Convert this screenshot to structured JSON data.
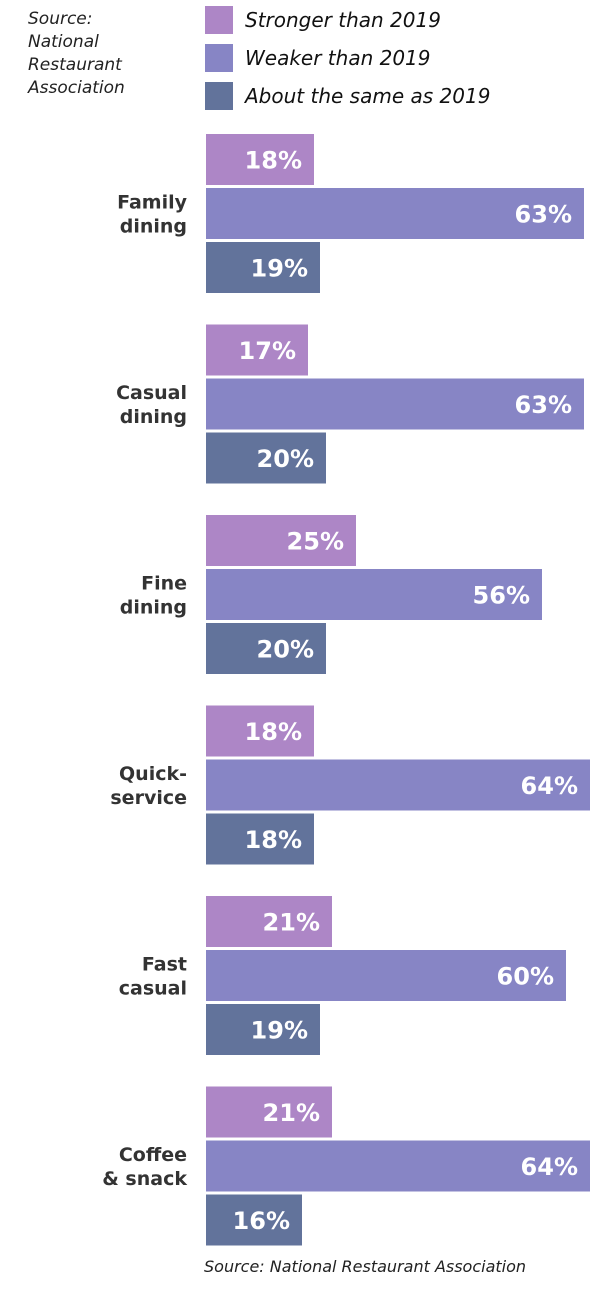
{
  "source_top": "Source: National Restaurant Association",
  "source_bottom": "Source: National  Restaurant Association",
  "colors": {
    "stronger": "#AD86C6",
    "weaker": "#8785C5",
    "same": "#62739B",
    "label": "#333333",
    "value_text": "#ffffff"
  },
  "chart_data": {
    "type": "bar",
    "orientation": "horizontal",
    "value_suffix": "%",
    "legend_position": "top",
    "categories": [
      "Family dining",
      "Casual dining",
      "Fine dining",
      "Quick-service",
      "Fast casual",
      "Coffee & snack"
    ],
    "category_lines": [
      [
        "Family",
        "dining"
      ],
      [
        "Casual",
        "dining"
      ],
      [
        "Fine",
        "dining"
      ],
      [
        "Quick-",
        "service"
      ],
      [
        "Fast",
        "casual"
      ],
      [
        "Coffee",
        "& snack"
      ]
    ],
    "series": [
      {
        "name": "Stronger than 2019",
        "values": [
          18,
          17,
          25,
          18,
          21,
          21
        ]
      },
      {
        "name": "Weaker than 2019",
        "values": [
          63,
          63,
          56,
          64,
          60,
          64
        ]
      },
      {
        "name": "About the same as 2019",
        "values": [
          19,
          20,
          20,
          18,
          19,
          16
        ]
      }
    ]
  }
}
